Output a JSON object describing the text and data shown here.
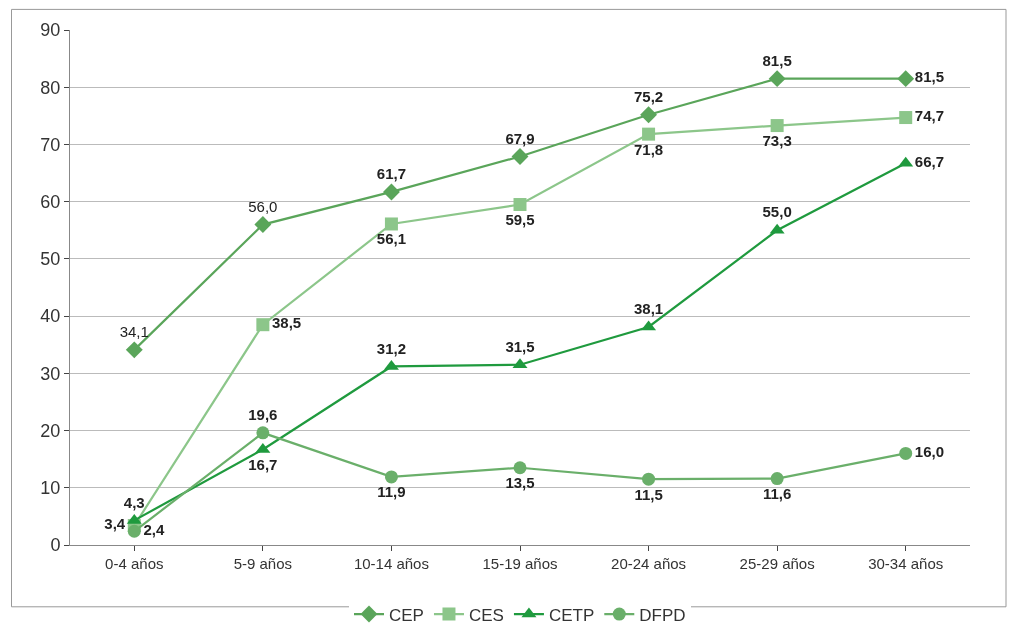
{
  "chart_data": {
    "type": "line",
    "categories": [
      "0-4 años",
      "5-9 años",
      "10-14 años",
      "15-19 años",
      "20-24 años",
      "25-29 años",
      "30-34 años"
    ],
    "series": [
      {
        "name": "CEP",
        "color": "#5aa55a",
        "marker": "diamond",
        "values": [
          34.1,
          56.0,
          61.7,
          67.9,
          75.2,
          81.5,
          81.5
        ],
        "value_labels": [
          "34,1",
          "56,0",
          "61,7",
          "67,9",
          "75,2",
          "81,5",
          "81,5"
        ]
      },
      {
        "name": "CES",
        "color": "#8cc68a",
        "marker": "square",
        "values": [
          3.4,
          38.5,
          56.1,
          59.5,
          71.8,
          73.3,
          74.7
        ],
        "value_labels": [
          "3,4",
          "38,5",
          "56,1",
          "59,5",
          "71,8",
          "73,3",
          "74,7"
        ]
      },
      {
        "name": "CETP",
        "color": "#1f9a3e",
        "marker": "triangle",
        "values": [
          4.3,
          16.7,
          31.2,
          31.5,
          38.1,
          55.0,
          66.7
        ],
        "value_labels": [
          "4,3",
          "16,7",
          "31,2",
          "31,5",
          "38,1",
          "55,0",
          "66,7"
        ]
      },
      {
        "name": "DFPD",
        "color": "#6aaf6a",
        "marker": "circle",
        "values": [
          2.4,
          19.6,
          11.9,
          13.5,
          11.5,
          11.6,
          16.0
        ],
        "value_labels": [
          "2,4",
          "19,6",
          "11,9",
          "13,5",
          "11,5",
          "11,6",
          "16,0"
        ]
      }
    ],
    "ylim": [
      0,
      90
    ],
    "yticks": [
      0,
      10,
      20,
      30,
      40,
      50,
      60,
      70,
      80,
      90
    ],
    "grid": "y",
    "legend": "bottom",
    "line_style": "solid"
  }
}
